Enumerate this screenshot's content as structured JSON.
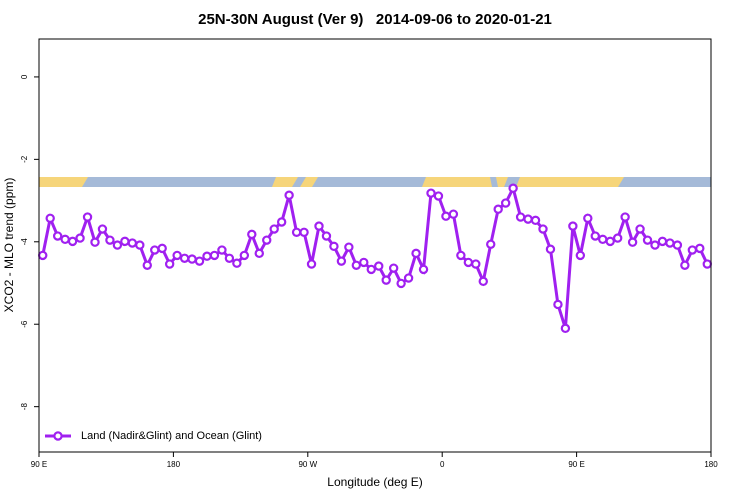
{
  "chart_data": {
    "type": "line",
    "title": "25N-30N August (Ver 9)   2014-09-06 to 2020-01-21",
    "x_label": "Longitude (deg E)",
    "y_label": "XCO2 - MLO trend (ppm)",
    "xlim": [
      90,
      540
    ],
    "ylim": [
      -9.1,
      0.92
    ],
    "xticks": [
      {
        "value": 90,
        "label": "90 E"
      },
      180,
      {
        "value": 270,
        "label": "90 W"
      },
      {
        "value": 360,
        "label": "0"
      },
      {
        "value": 450,
        "label": "90 E"
      },
      {
        "value": 540,
        "label": "180"
      }
    ],
    "yticks": [
      0,
      -2,
      -4,
      -6,
      -8
    ],
    "legend": "bottomleft",
    "x": [
      92.5,
      97.5,
      102.5,
      107.5,
      112.5,
      117.5,
      122.5,
      127.5,
      132.5,
      137.5,
      142.5,
      147.5,
      152.5,
      157.5,
      162.5,
      167.5,
      172.5,
      177.5,
      182.5,
      187.5,
      192.5,
      197.5,
      202.5,
      207.5,
      212.5,
      217.5,
      222.5,
      227.5,
      232.5,
      237.5,
      242.5,
      247.5,
      252.5,
      257.5,
      262.5,
      267.5,
      272.5,
      277.5,
      282.5,
      287.5,
      292.5,
      297.5,
      302.5,
      307.5,
      312.5,
      317.5,
      322.5,
      327.5,
      332.5,
      337.5,
      342.5,
      347.5,
      352.5,
      357.5,
      362.5,
      367.5,
      372.5,
      377.5,
      382.5,
      387.5,
      392.5,
      397.5,
      402.5,
      407.5,
      412.5,
      417.5,
      422.5,
      427.5,
      432.5,
      437.5,
      442.5,
      447.5,
      452.5,
      457.5,
      462.5,
      467.5,
      472.5,
      477.5,
      482.5,
      487.5,
      492.5,
      497.5,
      502.5,
      507.5,
      512.5,
      517.5,
      522.5,
      527.5,
      532.5,
      537.5
    ],
    "series": [
      {
        "name": "Land (Nadir&Glint) and Ocean (Glint)",
        "color": "#a020f0",
        "values": [
          -4.33,
          -3.43,
          -3.86,
          -3.94,
          -3.99,
          -3.91,
          -3.4,
          -4.01,
          -3.69,
          -3.96,
          -4.08,
          -3.99,
          -4.03,
          -4.08,
          -4.57,
          -4.2,
          -4.16,
          -4.54,
          -4.33,
          -4.4,
          -4.42,
          -4.47,
          -4.35,
          -4.33,
          -4.2,
          -4.4,
          -4.52,
          -4.33,
          -3.82,
          -4.28,
          -3.96,
          -3.69,
          -3.52,
          -2.87,
          -3.77,
          -3.77,
          -4.54,
          -3.62,
          -3.86,
          -4.11,
          -4.47,
          -4.13,
          -4.57,
          -4.5,
          -4.67,
          -4.59,
          -4.93,
          -4.64,
          -5.01,
          -4.88,
          -4.28,
          -4.67,
          -2.82,
          -2.89,
          -3.38,
          -3.33,
          -4.33,
          -4.5,
          -4.54,
          -4.96,
          -4.06,
          -3.21,
          -3.06,
          -2.7,
          -3.4,
          -3.45,
          -3.48,
          -3.69,
          -4.18,
          -5.52,
          -6.1,
          -3.62,
          -4.33,
          -3.43,
          -3.86,
          -3.94,
          -3.99,
          -3.91,
          -3.4,
          -4.01,
          -3.69,
          -3.96,
          -4.08,
          -3.99,
          -4.03,
          -4.08,
          -4.57,
          -4.2,
          -4.16,
          -4.54
        ]
      }
    ]
  }
}
